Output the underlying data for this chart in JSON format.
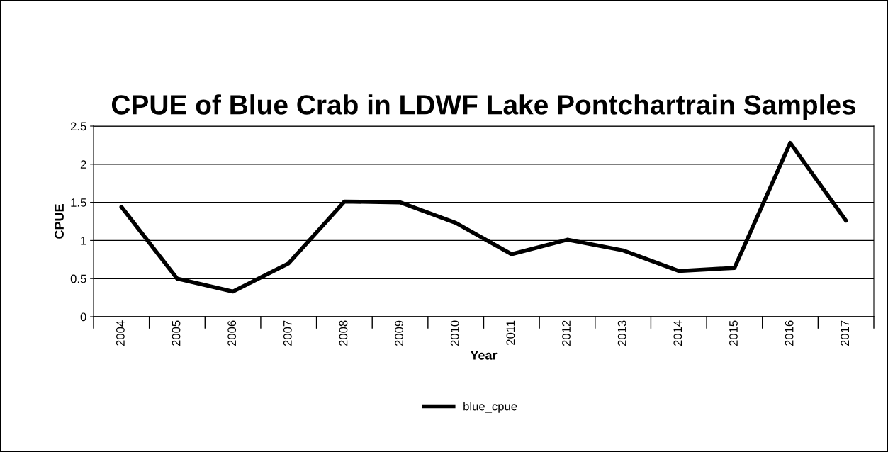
{
  "chart_data": {
    "type": "line",
    "title": "CPUE of Blue Crab in LDWF Lake Pontchartrain Samples",
    "xlabel": "Year",
    "ylabel": "CPUE",
    "categories": [
      "2004",
      "2005",
      "2006",
      "2007",
      "2008",
      "2009",
      "2010",
      "2011",
      "2012",
      "2013",
      "2014",
      "2015",
      "2016",
      "2017"
    ],
    "series": [
      {
        "name": "blue_cpue",
        "color": "#000000",
        "values": [
          1.44,
          0.5,
          0.33,
          0.7,
          1.51,
          1.5,
          1.23,
          0.82,
          1.01,
          0.87,
          0.6,
          0.64,
          2.28,
          1.26
        ]
      }
    ],
    "ylim": [
      0,
      2.5
    ],
    "yticks": [
      0,
      0.5,
      1,
      1.5,
      2,
      2.5
    ],
    "grid": "y",
    "legend": "bottom",
    "marker": "none",
    "line_style": "solid"
  }
}
